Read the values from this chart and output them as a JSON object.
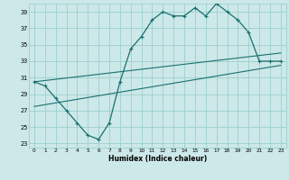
{
  "xlabel": "Humidex (Indice chaleur)",
  "bg_color": "#cce8e8",
  "grid_color": "#9ecece",
  "line_color": "#1a7070",
  "xlim": [
    -0.5,
    23.5
  ],
  "ylim": [
    22.5,
    40.0
  ],
  "yticks": [
    23,
    25,
    27,
    29,
    31,
    33,
    35,
    37,
    39
  ],
  "xticks": [
    0,
    1,
    2,
    3,
    4,
    5,
    6,
    7,
    8,
    9,
    10,
    11,
    12,
    13,
    14,
    15,
    16,
    17,
    18,
    19,
    20,
    21,
    22,
    23
  ],
  "line1_x": [
    0,
    1,
    2,
    3,
    4,
    5,
    6,
    7,
    8,
    9,
    10,
    11,
    12,
    13,
    14,
    15,
    16,
    17,
    18,
    19,
    20,
    21,
    22,
    23
  ],
  "line1_y": [
    30.5,
    30.0,
    28.5,
    27.0,
    25.5,
    24.0,
    23.5,
    25.5,
    30.5,
    34.5,
    36.0,
    38.0,
    39.0,
    38.5,
    38.5,
    39.5,
    38.5,
    40.0,
    39.0,
    38.0,
    36.5,
    33.0,
    33.0,
    33.0
  ],
  "line2_x": [
    0,
    23
  ],
  "line2_y": [
    30.5,
    34.0
  ],
  "line3_x": [
    0,
    23
  ],
  "line3_y": [
    27.5,
    32.5
  ]
}
